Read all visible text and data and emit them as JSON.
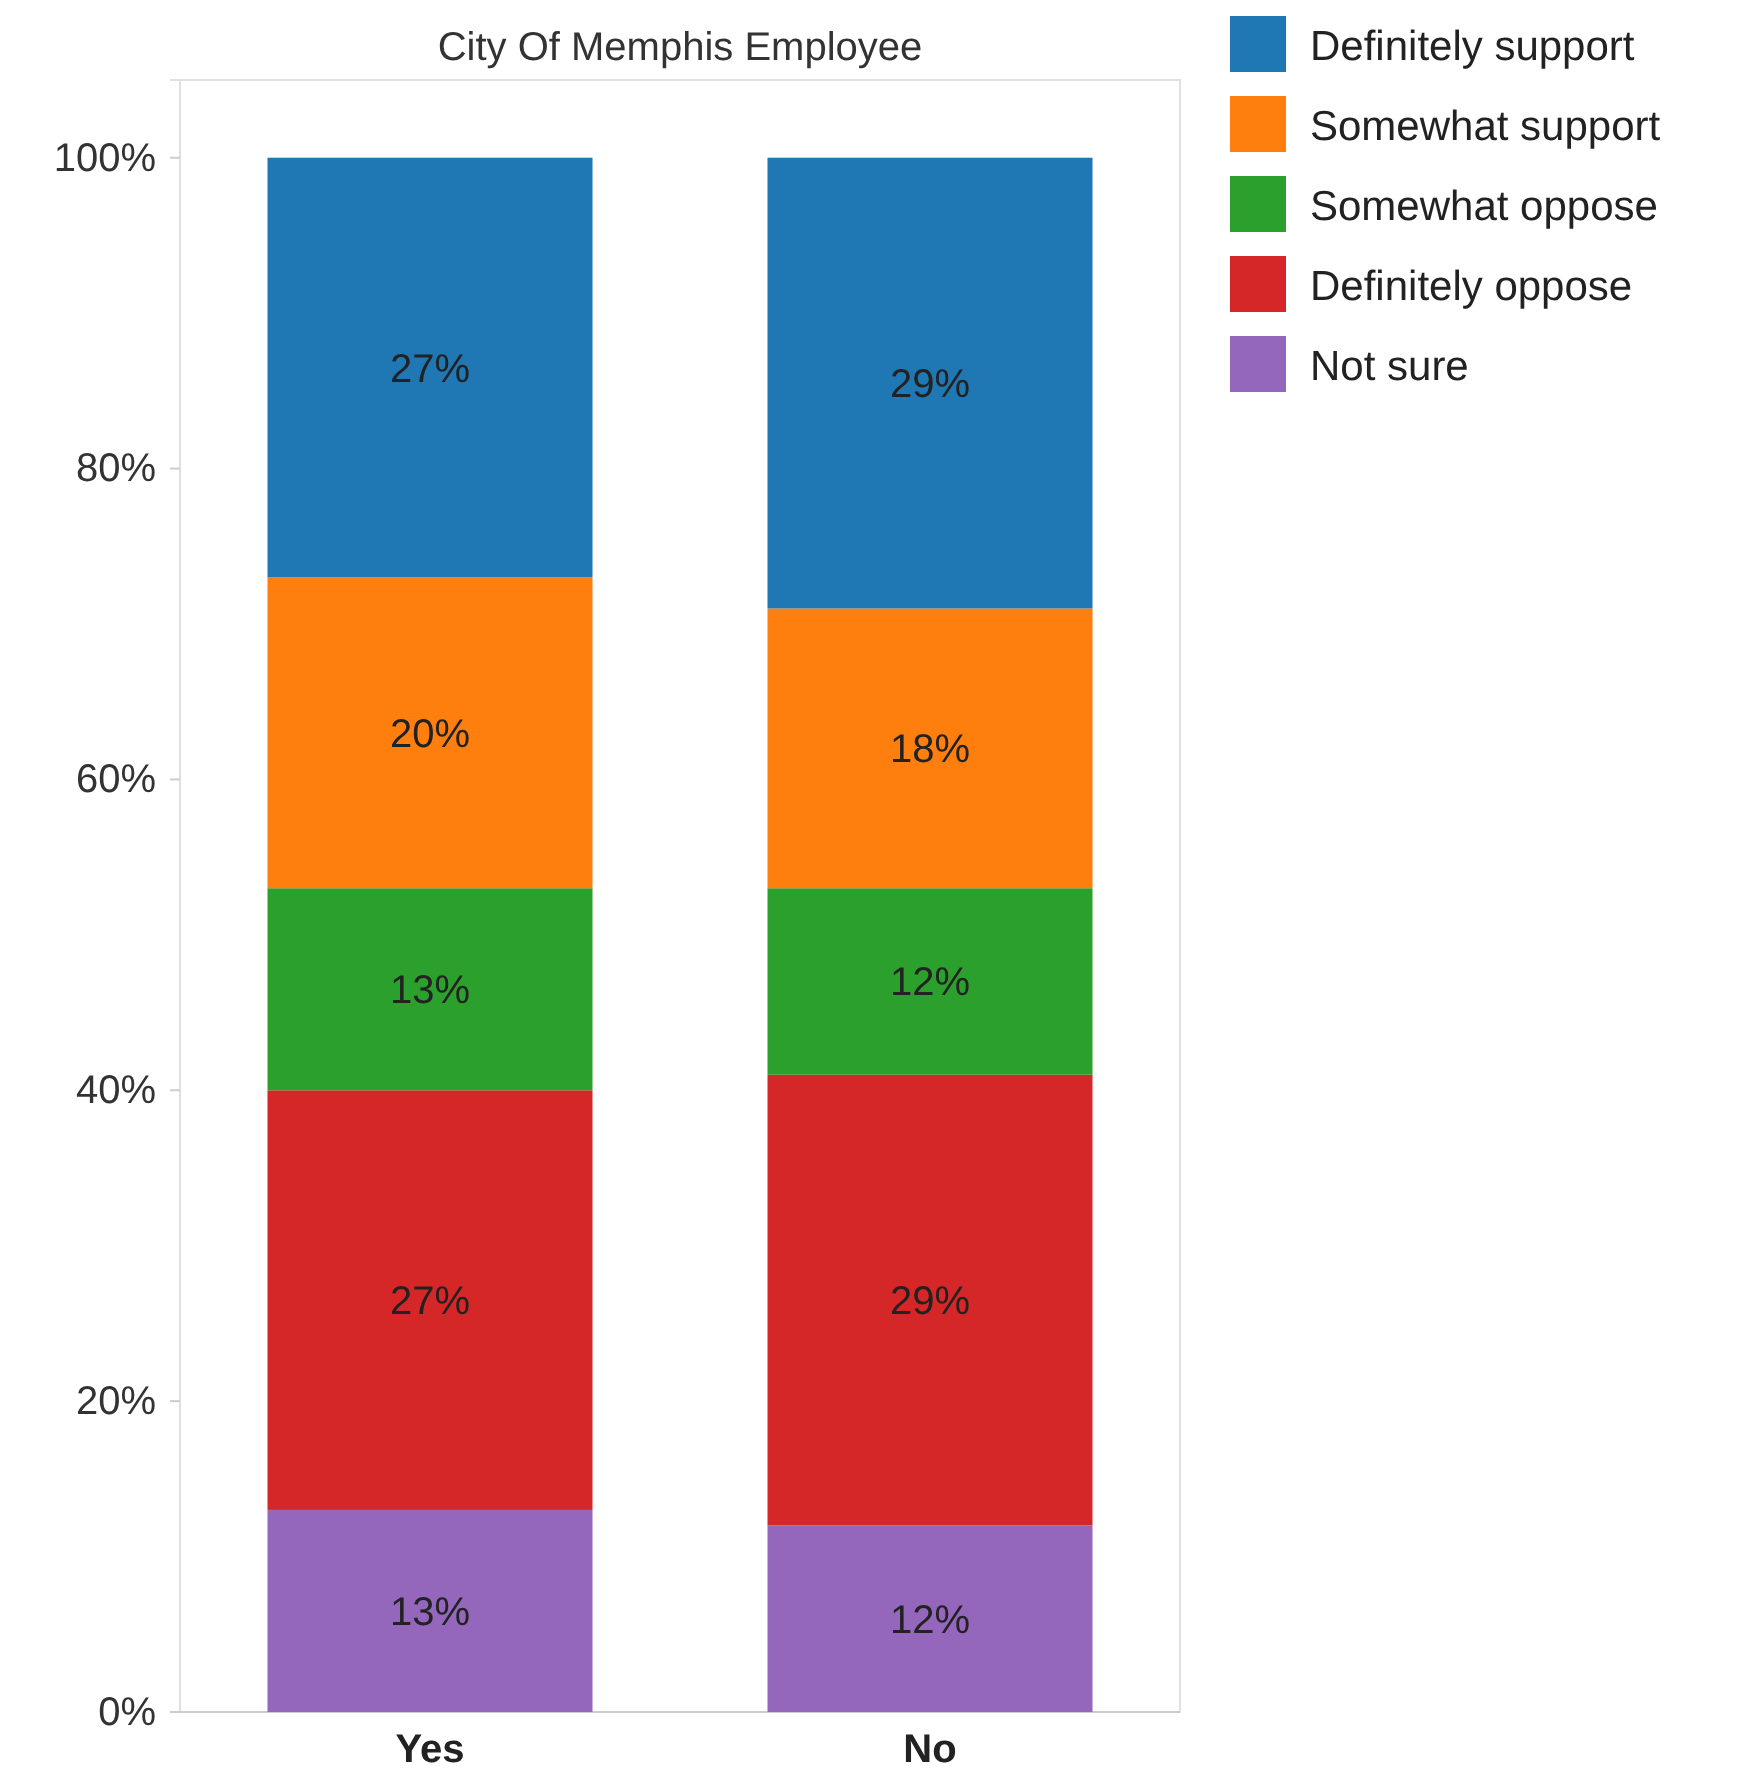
{
  "chart_data": {
    "type": "bar",
    "title": "City Of Memphis Employee",
    "categories": [
      "Yes",
      "No"
    ],
    "stacked": true,
    "ylim": [
      0,
      105
    ],
    "yticks": [
      {
        "value": 0,
        "label": "0%"
      },
      {
        "value": 20,
        "label": "20%"
      },
      {
        "value": 40,
        "label": "40%"
      },
      {
        "value": 60,
        "label": "60%"
      },
      {
        "value": 80,
        "label": "80%"
      },
      {
        "value": 100,
        "label": "100%"
      }
    ],
    "grid": false,
    "legend": "top right",
    "series": [
      {
        "name": "Not sure",
        "color": "#9467bd",
        "values": [
          13,
          12
        ],
        "value_labels": [
          "13%",
          "12%"
        ]
      },
      {
        "name": "Definitely oppose",
        "color": "#d62728",
        "values": [
          27,
          29
        ],
        "value_labels": [
          "27%",
          "29%"
        ]
      },
      {
        "name": "Somewhat oppose",
        "color": "#2ca02c",
        "values": [
          13,
          12
        ],
        "value_labels": [
          "13%",
          "12%"
        ]
      },
      {
        "name": "Somewhat support",
        "color": "#ff7f0e",
        "values": [
          20,
          18
        ],
        "value_labels": [
          "20%",
          "18%"
        ]
      },
      {
        "name": "Definitely support",
        "color": "#1f77b4",
        "values": [
          27,
          29
        ],
        "value_labels": [
          "27%",
          "29%"
        ]
      }
    ]
  }
}
